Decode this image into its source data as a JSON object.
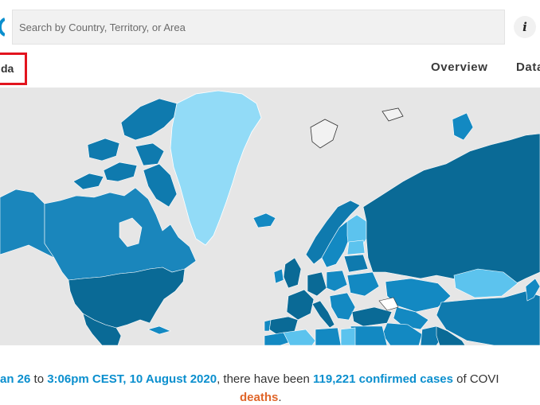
{
  "header": {
    "search_placeholder": "Search by Country, Territory, or Area",
    "info_label": "i"
  },
  "region": {
    "label": "da"
  },
  "nav": {
    "tabs": [
      "Overview",
      "Data"
    ]
  },
  "map": {
    "description_colors": {
      "ocean": "#e6e6e6",
      "dark": "#0a6a96",
      "mid": "#1389c2",
      "light": "#5cc3ee",
      "pale": "#92dbf7",
      "border": "#ffffff"
    }
  },
  "summary": {
    "part1": "an 26",
    "part2": " to ",
    "part3": "3:06pm CEST, 10 August 2020",
    "part4": ", there have been ",
    "part5": "119,221 confirmed cases",
    "part6": " of COVI",
    "deaths_label": "deaths",
    "deaths_suffix": "."
  },
  "colors": {
    "accent_blue": "#0b8fce",
    "accent_orange": "#e0662a",
    "highlight_red": "#e2141e"
  }
}
